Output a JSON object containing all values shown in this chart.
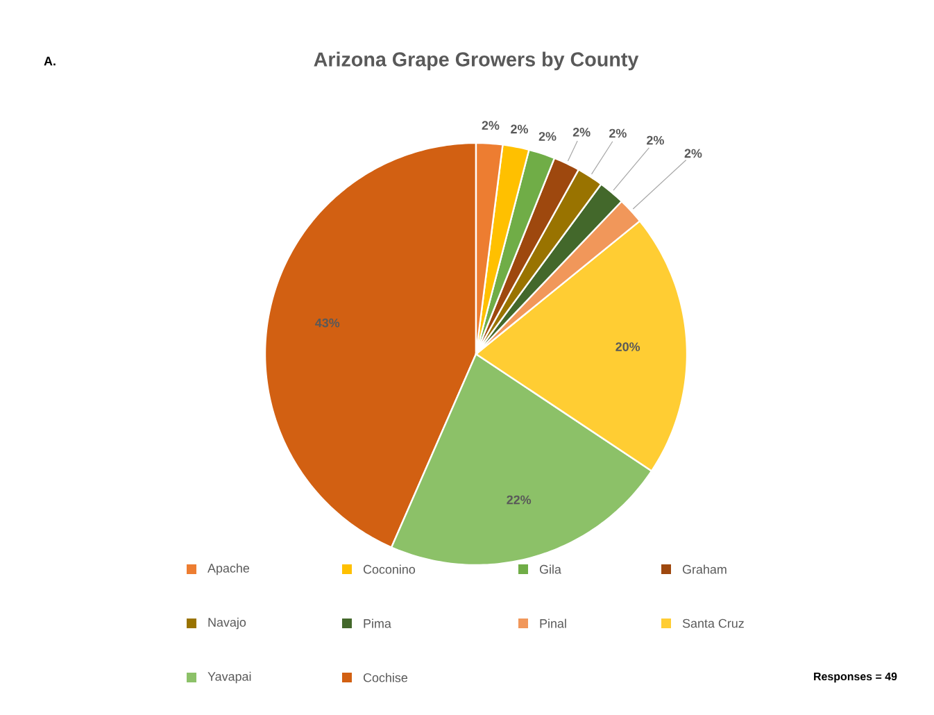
{
  "chart_data": {
    "type": "pie",
    "title": "Arizona Grape Growers by County",
    "categories": [
      "Apache",
      "Coconino",
      "Gila",
      "Graham",
      "Navajo",
      "Pima",
      "Pinal",
      "Santa Cruz",
      "Yavapai",
      "Cochise"
    ],
    "values": [
      2,
      2,
      2,
      2,
      2,
      2,
      2,
      20,
      22,
      43
    ],
    "value_labels": [
      "2%",
      "2%",
      "2%",
      "2%",
      "2%",
      "2%",
      "2%",
      "20%",
      "22%",
      "43%"
    ],
    "colors": [
      "#ed7d31",
      "#ffc000",
      "#70ad47",
      "#9e480e",
      "#997300",
      "#43682b",
      "#f1975a",
      "#ffcd33",
      "#8cc168",
      "#d26012"
    ],
    "legend": "bottom",
    "annotations": [
      "A.",
      "Responses = 49"
    ]
  }
}
